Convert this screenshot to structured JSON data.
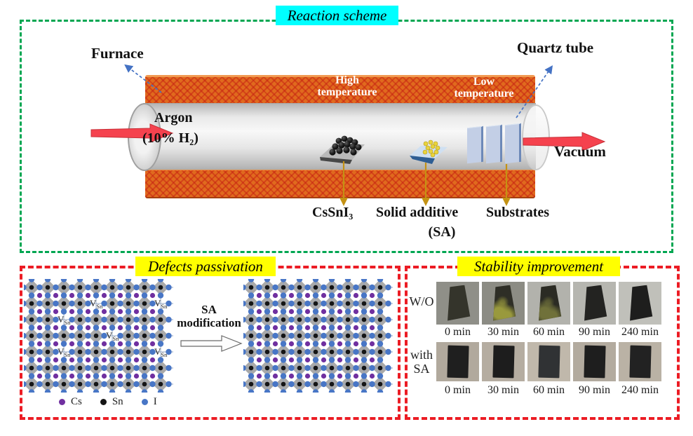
{
  "reaction": {
    "title": "Reaction scheme",
    "title_bg": "#00ffff",
    "border_color": "#00a651",
    "furnace_label": "Furnace",
    "quartz_tube_label": "Quartz tube",
    "argon_line1": "Argon",
    "argon_line2": "(10% H₂)",
    "high_temp_line1": "High",
    "high_temp_line2": "temperature",
    "low_temp_line1": "Low",
    "low_temp_line2": "temperature",
    "vacuum_label": "Vacuum",
    "cssni3_label": "CsSnI₃",
    "solid_additive_label": "Solid additive",
    "solid_additive_abbr": "(SA)",
    "substrates_label": "Substrates",
    "furnace_color": "#e06a1e",
    "flow_arrow_color": "#f5424e",
    "pointer_arrow_color": "#4472c4",
    "item_arrow_color": "#c49214"
  },
  "defects": {
    "title": "Defects passivation",
    "title_bg": "#ffff00",
    "border_color": "#ec1c24",
    "sa_modification_line1": "SA",
    "sa_modification_line2": "modification",
    "vacancy_label": {
      "main": "V",
      "sub": "Sn"
    },
    "legend": [
      {
        "name": "Cs",
        "color": "#7030a0"
      },
      {
        "name": "Sn",
        "color": "#151515"
      },
      {
        "name": "I",
        "color": "#4876c6"
      }
    ],
    "lattice": {
      "cols": 9,
      "rows": 7,
      "spacing": 23,
      "colors": {
        "octahedron": "#a9a9a9",
        "bond": "#8fa3c0",
        "sn": "#151515",
        "i": "#4876c6",
        "cs": "#7030a0"
      },
      "vacancies": [
        [
          4,
          1
        ],
        [
          8,
          1
        ],
        [
          2,
          2
        ],
        [
          5,
          3
        ],
        [
          2,
          4
        ],
        [
          8,
          4
        ]
      ]
    }
  },
  "stability": {
    "title": "Stability improvement",
    "rows": [
      {
        "label_lines": [
          "W/O"
        ],
        "times": [
          "0 min",
          "30 min",
          "60 min",
          "90 min",
          "240 min"
        ],
        "photos": [
          {
            "bg": "#8f8f88",
            "sample": "#34342b",
            "mottle": null
          },
          {
            "bg": "#8c8c84",
            "sample": "#2e2e26",
            "mottle": "#99993d"
          },
          {
            "bg": "#b2b2ac",
            "sample": "#2b2b24",
            "mottle": "#70713a"
          },
          {
            "bg": "#b6b6b0",
            "sample": "#232321",
            "mottle": null
          },
          {
            "bg": "#c0c0ba",
            "sample": "#1e1e1d",
            "mottle": null
          }
        ]
      },
      {
        "label_lines": [
          "with",
          "SA"
        ],
        "times": [
          "0 min",
          "30 min",
          "60 min",
          "90 min",
          "240 min"
        ],
        "photos": [
          {
            "bg": "#b1a99d",
            "sample": "#1f1f1f",
            "mottle": null
          },
          {
            "bg": "#b5ada1",
            "sample": "#1d1d1d",
            "mottle": null
          },
          {
            "bg": "#c0b8ab",
            "sample": "#303234",
            "mottle": null
          },
          {
            "bg": "#b3ab9f",
            "sample": "#1e1e1e",
            "mottle": null
          },
          {
            "bg": "#bab2a5",
            "sample": "#222222",
            "mottle": null
          }
        ]
      }
    ]
  }
}
